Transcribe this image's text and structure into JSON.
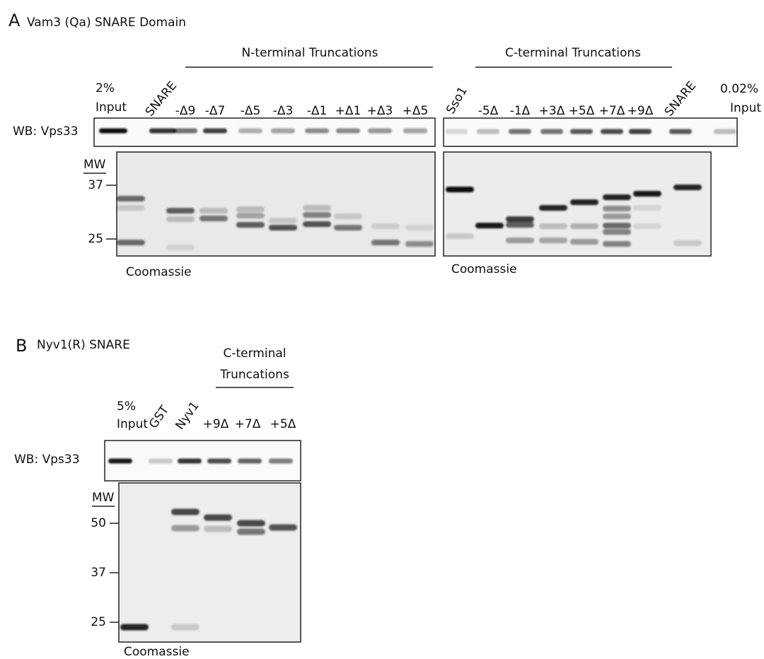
{
  "panel_a": {
    "letter": "A",
    "title": "Vam3 (Qa) SNARE Domain",
    "n_group": "N-terminal Truncations",
    "c_group": "C-terminal Truncations",
    "input_left": [
      "2%",
      "Input"
    ],
    "snare_left": "SNARE",
    "lanes_left": [
      "-Δ9",
      "-Δ7",
      "-Δ5",
      "-Δ3",
      "-Δ1",
      "+Δ1",
      "+Δ3",
      "+Δ5"
    ],
    "sso1": "Sso1",
    "lanes_right": [
      "-5Δ",
      "-1Δ",
      "+3Δ",
      "+5Δ",
      "+7Δ",
      "+9Δ"
    ],
    "snare_right": "SNARE",
    "input_right": [
      "0.02%",
      "Input"
    ],
    "blot_label": "WB: Vps33",
    "mw_label": "MW",
    "mw_markers": [
      "37",
      "25"
    ],
    "gel_label_left": "Coomassie",
    "gel_label_right": "Coomassie"
  },
  "panel_b": {
    "letter": "B",
    "title": "Nyv1(R) SNARE",
    "c_group": [
      "C-terminal",
      "Truncations"
    ],
    "input": [
      "5%",
      "Input"
    ],
    "gst": "GST",
    "nyv1": "Nyv1",
    "lanes": [
      "+9Δ",
      "+7Δ",
      "+5Δ"
    ],
    "blot_label": "WB: Vps33",
    "mw_label": "MW",
    "mw_markers": [
      "50",
      "37",
      "25"
    ],
    "gel_label": "Coomassie"
  }
}
